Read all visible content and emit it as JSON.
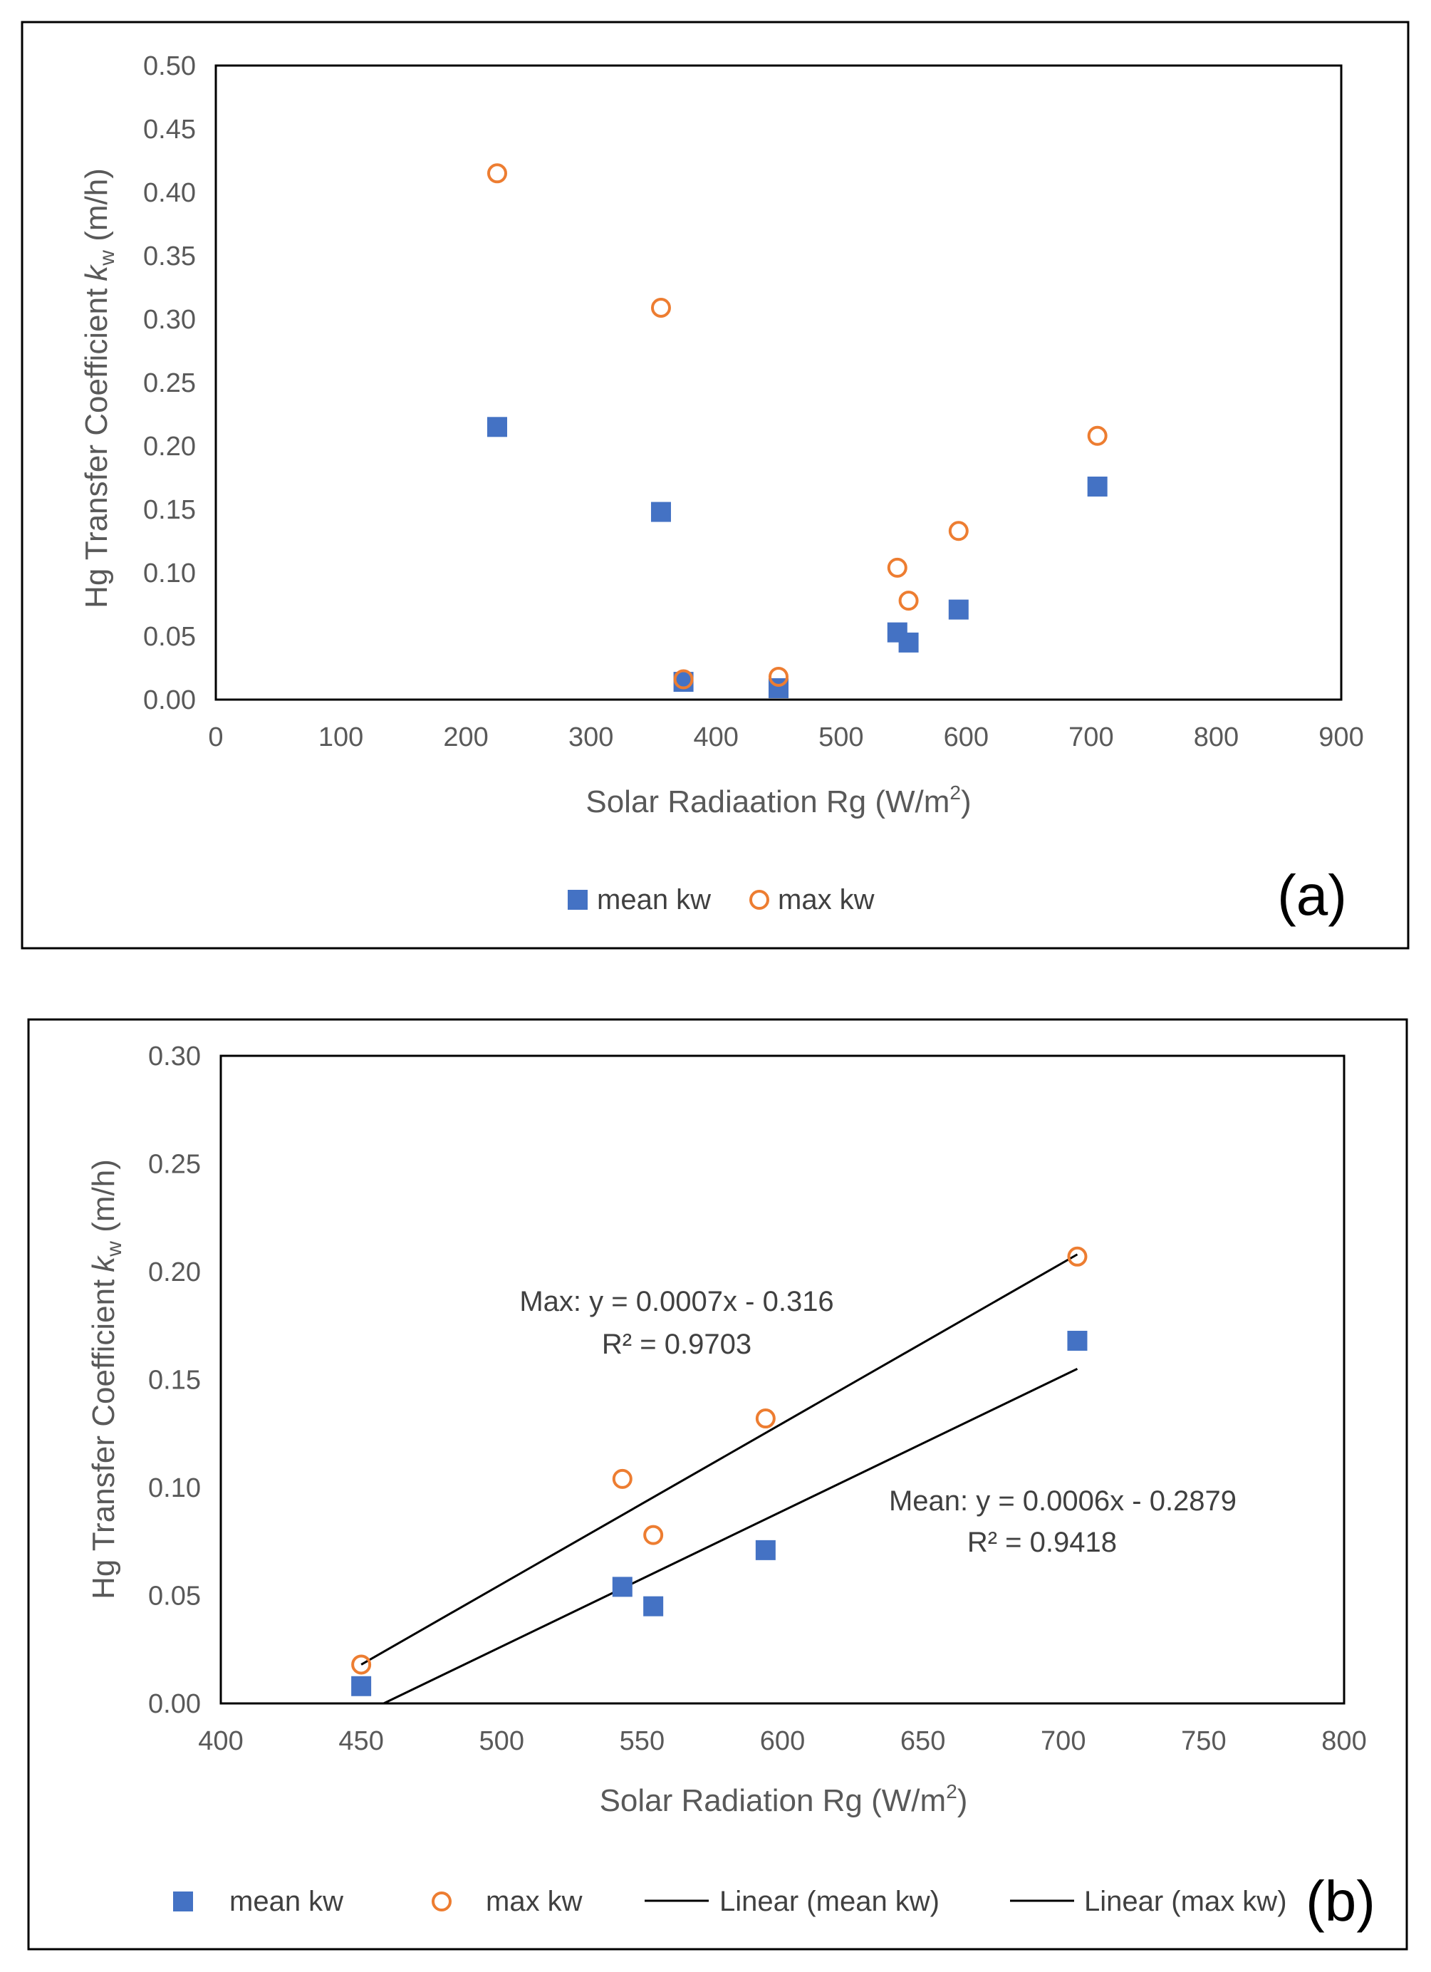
{
  "colors": {
    "mean": "#4472C4",
    "max": "#ED7D31",
    "line": "#000000",
    "axis_text": "#595959"
  },
  "chart_data": [
    {
      "type": "scatter",
      "panel_label": "(a)",
      "title": "",
      "xlabel": "Solar Radiaation Rg (W/m",
      "xlabel_sup": "2",
      "xlabel_end": ")",
      "ylabel": "Hg Transfer Coefficient",
      "ylabel_k": "k",
      "ylabel_sub": "w",
      "ylabel_end": " (m/h)",
      "xlim": [
        0,
        900
      ],
      "ylim": [
        0,
        0.5
      ],
      "xticks": [
        "0",
        "100",
        "200",
        "300",
        "400",
        "500",
        "600",
        "700",
        "800",
        "900"
      ],
      "yticks": [
        "0.00",
        "0.05",
        "0.10",
        "0.15",
        "0.20",
        "0.25",
        "0.30",
        "0.35",
        "0.40",
        "0.45",
        "0.50"
      ],
      "series": [
        {
          "name": "mean kw",
          "marker": "square",
          "x": [
            225,
            356,
            374,
            450,
            545,
            554,
            594,
            705
          ],
          "y": [
            0.215,
            0.148,
            0.014,
            0.009,
            0.053,
            0.045,
            0.071,
            0.168
          ]
        },
        {
          "name": "max kw",
          "marker": "circle",
          "x": [
            225,
            356,
            374,
            450,
            545,
            554,
            594,
            705
          ],
          "y": [
            0.415,
            0.309,
            0.016,
            0.018,
            0.104,
            0.078,
            0.133,
            0.208
          ]
        }
      ],
      "legend": [
        "mean kw",
        "max kw"
      ]
    },
    {
      "type": "scatter",
      "panel_label": "(b)",
      "title": "",
      "xlabel": "Solar Radiation Rg (W/m",
      "xlabel_sup": "2",
      "xlabel_end": ")",
      "ylabel": "Hg Transfer Coefficient",
      "ylabel_k": "k",
      "ylabel_sub": "w",
      "ylabel_end": " (m/h)",
      "xlim": [
        400,
        800
      ],
      "ylim": [
        0,
        0.3
      ],
      "xticks": [
        "400",
        "450",
        "500",
        "550",
        "600",
        "650",
        "700",
        "750",
        "800"
      ],
      "yticks": [
        "0.00",
        "0.05",
        "0.10",
        "0.15",
        "0.20",
        "0.25",
        "0.30"
      ],
      "series": [
        {
          "name": "mean kw",
          "marker": "square",
          "x": [
            450,
            543,
            554,
            594,
            705
          ],
          "y": [
            0.008,
            0.054,
            0.045,
            0.071,
            0.168
          ]
        },
        {
          "name": "max kw",
          "marker": "circle",
          "x": [
            450,
            543,
            554,
            594,
            705
          ],
          "y": [
            0.018,
            0.104,
            0.078,
            0.132,
            0.207
          ]
        }
      ],
      "trendlines": [
        {
          "name": "Linear (mean kw)",
          "x": [
            458,
            705
          ],
          "y": [
            0.0,
            0.155
          ]
        },
        {
          "name": "Linear (max kw)",
          "x": [
            450,
            705
          ],
          "y": [
            0.018,
            0.208
          ]
        }
      ],
      "annotations": {
        "max_eq": "Max: y = 0.0007x - 0.316",
        "max_r2": "R² = 0.9703",
        "mean_eq": "Mean: y = 0.0006x - 0.2879",
        "mean_r2": "R² = 0.9418"
      },
      "legend": [
        "mean kw",
        "max kw",
        "Linear (mean kw)",
        "Linear (max kw)"
      ]
    }
  ]
}
